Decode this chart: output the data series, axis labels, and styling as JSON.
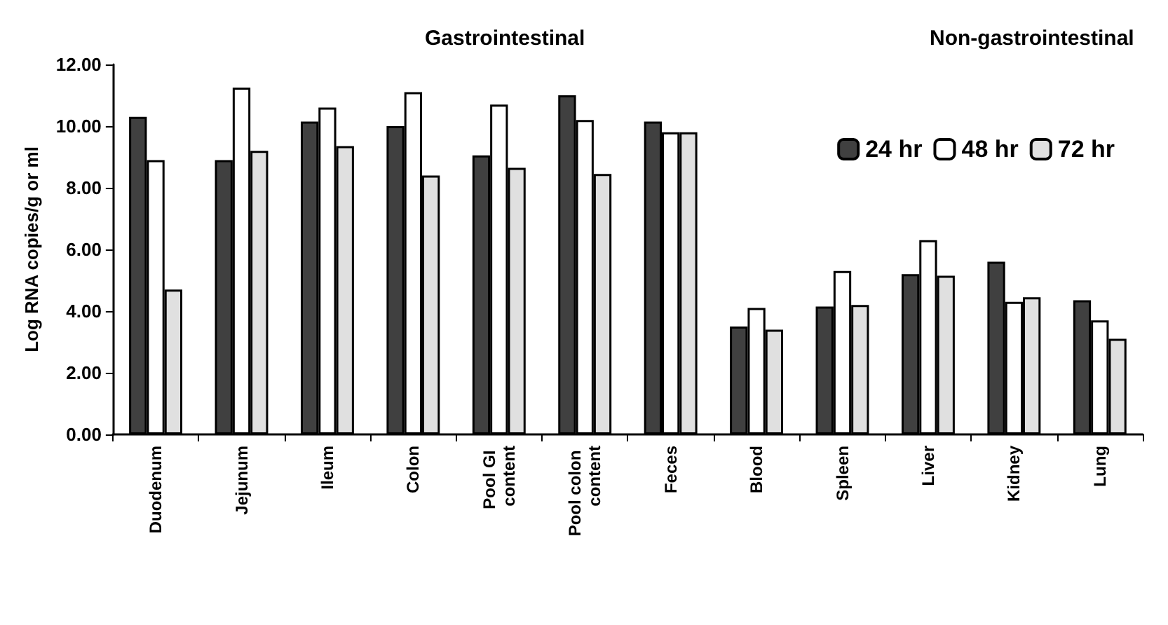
{
  "chart_data": {
    "type": "bar",
    "ylabel": "Log RNA copies/g or ml",
    "categories": [
      "Duodenum",
      "Jejunum",
      "Ileum",
      "Colon",
      "Pool GI content",
      "Pool colon content",
      "Feces",
      "Blood",
      "Spleen",
      "Liver",
      "Kidney",
      "Lung"
    ],
    "series": [
      {
        "name": "24 hr",
        "color": "#404040",
        "values": [
          10.3,
          8.9,
          10.15,
          10.0,
          9.05,
          11.0,
          10.15,
          3.5,
          4.15,
          5.2,
          5.6,
          4.35
        ]
      },
      {
        "name": "48 hr",
        "color": "#ffffff",
        "values": [
          8.9,
          11.25,
          10.6,
          11.1,
          10.7,
          10.2,
          9.8,
          4.1,
          5.3,
          6.3,
          4.3,
          3.7
        ]
      },
      {
        "name": "72 hr",
        "color": "#e0e0e0",
        "values": [
          4.7,
          9.2,
          9.35,
          8.4,
          8.65,
          8.45,
          9.8,
          3.4,
          4.2,
          5.15,
          4.45,
          3.1
        ]
      }
    ],
    "ylim": [
      0,
      12
    ],
    "yticks": [
      {
        "value": 0,
        "label": "0.00"
      },
      {
        "value": 2,
        "label": "2.00"
      },
      {
        "value": 4,
        "label": "4.00"
      },
      {
        "value": 6,
        "label": "6.00"
      },
      {
        "value": 8,
        "label": "8.00"
      },
      {
        "value": 10,
        "label": "10.00"
      },
      {
        "value": 12,
        "label": "12.00"
      }
    ],
    "annotations": [
      "Gastrointestinal",
      "Non-gastrointestinal"
    ],
    "grid": false,
    "legend": "top right"
  }
}
